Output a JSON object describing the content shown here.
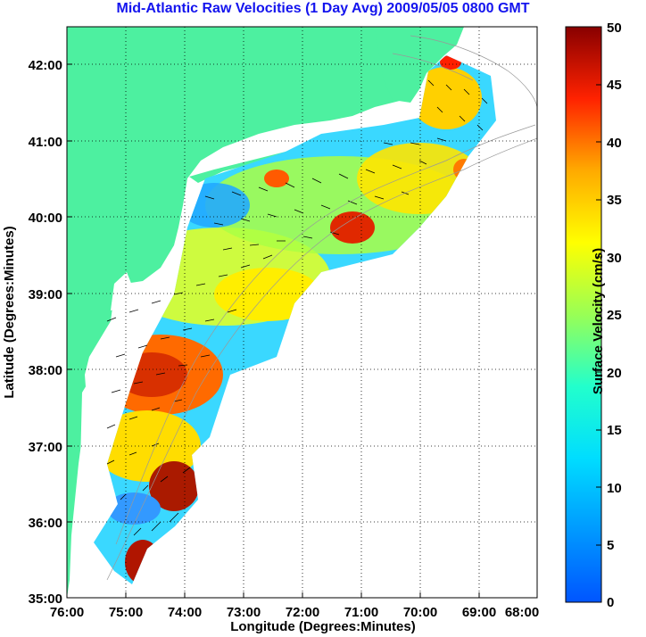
{
  "title": "Mid-Atlantic Raw Velocities (1 Day Avg) 2009/05/05 0800 GMT",
  "map": {
    "xlabel": "Longitude (Degrees:Minutes)",
    "ylabel": "Latitude (Degrees:Minutes)",
    "x_ticks": [
      "76:00",
      "75:00",
      "74:00",
      "73:00",
      "72:00",
      "71:00",
      "70:00",
      "69:00",
      "68:00"
    ],
    "y_ticks": [
      "35:00",
      "36:00",
      "37:00",
      "38:00",
      "39:00",
      "40:00",
      "41:00",
      "42:00"
    ],
    "lon_range": [
      -76,
      -68
    ],
    "lat_range": [
      35,
      42.5
    ],
    "land_color": "#4df0a0",
    "grid": "dotted"
  },
  "colorbar": {
    "label": "Surface Velocity (cm/s)",
    "ticks": [
      "0",
      "5",
      "10",
      "15",
      "20",
      "25",
      "30",
      "35",
      "40",
      "45",
      "50"
    ],
    "range": [
      0,
      50
    ],
    "colormap": "jet"
  }
}
